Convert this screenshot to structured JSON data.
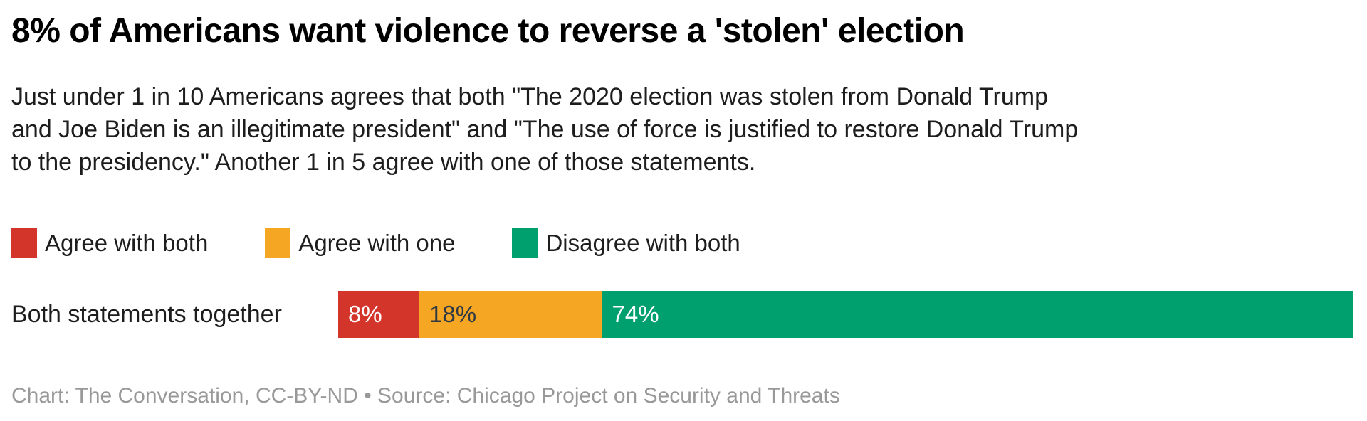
{
  "chart": {
    "title": "8% of Americans want violence to reverse a 'stolen' election",
    "subtitle": "Just under 1 in 10 Americans agrees that both \"The 2020 election was stolen from Donald Trump and Joe Biden is an illegitimate president\" and \"The use of force is justified to restore Donald Trump to the presidency.\" Another 1 in 5 agree with one of those statements.",
    "footer": "Chart: The Conversation, CC-BY-ND • Source: Chicago Project on Security and Threats"
  },
  "legend": {
    "items": [
      {
        "label": "Agree with both",
        "color": "#d3352b"
      },
      {
        "label": "Agree with one",
        "color": "#f5a623"
      },
      {
        "label": "Disagree with both",
        "color": "#00a06e"
      }
    ]
  },
  "colors": {
    "red": "#d3352b",
    "orange": "#f5a623",
    "green": "#00a06e",
    "text_dark": "#1d1d1d",
    "footer_gray": "#999999"
  },
  "chart_data": {
    "type": "bar",
    "stacked": true,
    "orientation": "horizontal",
    "title": "8% of Americans want violence to reverse a 'stolen' election",
    "categories": [
      "Both statements together"
    ],
    "series": [
      {
        "name": "Agree with both",
        "values": [
          8
        ],
        "color": "#d3352b",
        "label_color": "#ffffff"
      },
      {
        "name": "Agree with one",
        "values": [
          18
        ],
        "color": "#f5a623",
        "label_color": "#2f3a45"
      },
      {
        "name": "Disagree with both",
        "values": [
          74
        ],
        "color": "#00a06e",
        "label_color": "#ffffff"
      }
    ],
    "value_labels": [
      [
        "8%",
        "18%",
        "74%"
      ]
    ],
    "xlim": [
      0,
      100
    ],
    "grid": false,
    "legend_position": "top"
  }
}
